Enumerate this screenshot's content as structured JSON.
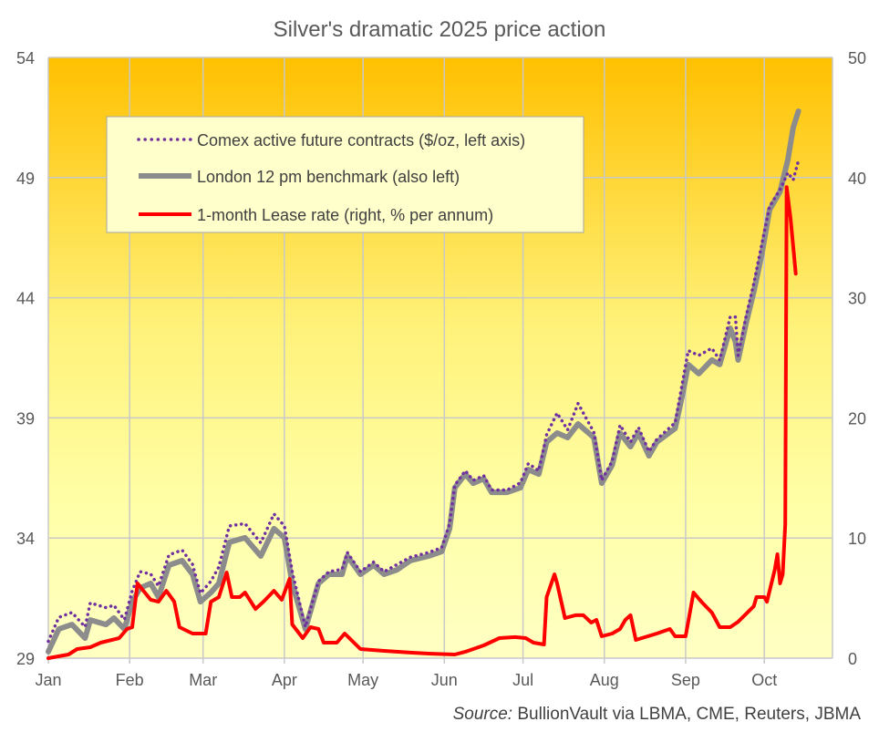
{
  "chart_data": {
    "type": "line",
    "title": "Silver's dramatic 2025 price action",
    "source_label": "Source:",
    "source_text": " BullionVault via LBMA, CME, Reuters, JBMA",
    "x_unit": "day of year 2025 (0 = 1 Jan)",
    "x_range": [
      0,
      299
    ],
    "x_ticks": [
      {
        "label": "Jan",
        "day": 0
      },
      {
        "label": "Feb",
        "day": 31
      },
      {
        "label": "Mar",
        "day": 59
      },
      {
        "label": "Apr",
        "day": 90
      },
      {
        "label": "May",
        "day": 120
      },
      {
        "label": "Jun",
        "day": 151
      },
      {
        "label": "Jul",
        "day": 181
      },
      {
        "label": "Aug",
        "day": 212
      },
      {
        "label": "Sep",
        "day": 243
      },
      {
        "label": "Oct",
        "day": 273
      }
    ],
    "y_left": {
      "range": [
        29,
        54
      ],
      "ticks": [
        "29",
        "34",
        "39",
        "44",
        "49",
        "54"
      ]
    },
    "y_right": {
      "range": [
        0,
        50
      ],
      "ticks": [
        "0",
        "10",
        "20",
        "30",
        "40",
        "50"
      ]
    },
    "grid": true,
    "legend_position": "top-left",
    "series": [
      {
        "name": "Comex active future contracts ($/oz, left axis)",
        "axis": "left",
        "style": "dotted",
        "color": "#7030A0",
        "points": [
          [
            0,
            29.7
          ],
          [
            4,
            30.7
          ],
          [
            9,
            30.9
          ],
          [
            14,
            30.3
          ],
          [
            16,
            31.3
          ],
          [
            22,
            31.1
          ],
          [
            25,
            31.2
          ],
          [
            29,
            30.6
          ],
          [
            32,
            31.8
          ],
          [
            35,
            32.6
          ],
          [
            39,
            32.5
          ],
          [
            42,
            32.0
          ],
          [
            46,
            33.3
          ],
          [
            51,
            33.5
          ],
          [
            55,
            32.9
          ],
          [
            58,
            31.7
          ],
          [
            62,
            32.2
          ],
          [
            65,
            32.8
          ],
          [
            69,
            34.5
          ],
          [
            75,
            34.6
          ],
          [
            81,
            33.8
          ],
          [
            86,
            35.0
          ],
          [
            90,
            34.5
          ],
          [
            93,
            32.6
          ],
          [
            98,
            30.3
          ],
          [
            103,
            32.2
          ],
          [
            107,
            32.6
          ],
          [
            112,
            32.7
          ],
          [
            114,
            33.4
          ],
          [
            119,
            32.6
          ],
          [
            124,
            33.0
          ],
          [
            128,
            32.6
          ],
          [
            133,
            32.9
          ],
          [
            138,
            33.2
          ],
          [
            145,
            33.4
          ],
          [
            150,
            33.6
          ],
          [
            153,
            34.6
          ],
          [
            155,
            36.2
          ],
          [
            159,
            36.8
          ],
          [
            162,
            36.4
          ],
          [
            166,
            36.6
          ],
          [
            169,
            36.0
          ],
          [
            175,
            36.0
          ],
          [
            180,
            36.3
          ],
          [
            183,
            37.1
          ],
          [
            187,
            36.8
          ],
          [
            190,
            38.3
          ],
          [
            194,
            39.2
          ],
          [
            198,
            38.5
          ],
          [
            202,
            39.6
          ],
          [
            208,
            38.4
          ],
          [
            211,
            36.4
          ],
          [
            215,
            37.2
          ],
          [
            218,
            38.7
          ],
          [
            222,
            38.0
          ],
          [
            225,
            38.6
          ],
          [
            229,
            37.6
          ],
          [
            232,
            38.1
          ],
          [
            239,
            38.8
          ],
          [
            242,
            40.6
          ],
          [
            244,
            41.8
          ],
          [
            248,
            41.6
          ],
          [
            253,
            41.9
          ],
          [
            256,
            41.4
          ],
          [
            260,
            43.2
          ],
          [
            262,
            43.2
          ],
          [
            263,
            41.6
          ],
          [
            266,
            43.2
          ],
          [
            269,
            44.6
          ],
          [
            272,
            46.2
          ],
          [
            275,
            47.8
          ],
          [
            279,
            48.5
          ],
          [
            282,
            49.2
          ],
          [
            284,
            48.9
          ],
          [
            286,
            49.7
          ]
        ]
      },
      {
        "name": "London 12 pm benchmark (also left)",
        "axis": "left",
        "style": "solid-thick",
        "color": "#8C8C8C",
        "points": [
          [
            0,
            29.27
          ],
          [
            4,
            30.21
          ],
          [
            9,
            30.4
          ],
          [
            14,
            29.83
          ],
          [
            16,
            30.59
          ],
          [
            22,
            30.4
          ],
          [
            25,
            30.67
          ],
          [
            29,
            30.21
          ],
          [
            32,
            31.35
          ],
          [
            35,
            31.92
          ],
          [
            39,
            32.11
          ],
          [
            42,
            31.54
          ],
          [
            46,
            32.87
          ],
          [
            51,
            33.06
          ],
          [
            55,
            32.49
          ],
          [
            58,
            31.35
          ],
          [
            62,
            31.73
          ],
          [
            65,
            32.11
          ],
          [
            69,
            33.82
          ],
          [
            75,
            34.01
          ],
          [
            81,
            33.25
          ],
          [
            86,
            34.39
          ],
          [
            90,
            34.01
          ],
          [
            93,
            32.11
          ],
          [
            98,
            30.21
          ],
          [
            103,
            32.11
          ],
          [
            107,
            32.49
          ],
          [
            112,
            32.49
          ],
          [
            114,
            33.25
          ],
          [
            119,
            32.49
          ],
          [
            124,
            32.87
          ],
          [
            128,
            32.49
          ],
          [
            133,
            32.68
          ],
          [
            138,
            33.06
          ],
          [
            145,
            33.25
          ],
          [
            150,
            33.44
          ],
          [
            153,
            34.39
          ],
          [
            155,
            36.09
          ],
          [
            159,
            36.66
          ],
          [
            162,
            36.28
          ],
          [
            166,
            36.47
          ],
          [
            169,
            35.9
          ],
          [
            175,
            35.9
          ],
          [
            180,
            36.09
          ],
          [
            183,
            36.85
          ],
          [
            187,
            36.66
          ],
          [
            190,
            37.99
          ],
          [
            194,
            38.37
          ],
          [
            198,
            38.18
          ],
          [
            202,
            38.75
          ],
          [
            208,
            38.18
          ],
          [
            211,
            36.28
          ],
          [
            215,
            37.04
          ],
          [
            218,
            38.37
          ],
          [
            222,
            37.8
          ],
          [
            225,
            38.37
          ],
          [
            229,
            37.42
          ],
          [
            232,
            37.99
          ],
          [
            239,
            38.56
          ],
          [
            242,
            40.08
          ],
          [
            244,
            41.22
          ],
          [
            248,
            40.84
          ],
          [
            253,
            41.41
          ],
          [
            256,
            41.22
          ],
          [
            260,
            42.73
          ],
          [
            262,
            42.16
          ],
          [
            263,
            41.41
          ],
          [
            266,
            42.92
          ],
          [
            269,
            44.25
          ],
          [
            272,
            45.77
          ],
          [
            275,
            47.66
          ],
          [
            279,
            48.42
          ],
          [
            282,
            49.75
          ],
          [
            284,
            51.08
          ],
          [
            286,
            51.76
          ]
        ]
      },
      {
        "name": "1-month Lease rate (right, % per annum)",
        "axis": "right",
        "style": "solid",
        "color": "#FF0000",
        "points": [
          [
            0,
            0
          ],
          [
            7.7,
            0.3
          ],
          [
            11,
            0.76
          ],
          [
            16,
            0.91
          ],
          [
            20,
            1.29
          ],
          [
            27,
            1.67
          ],
          [
            30,
            2.43
          ],
          [
            32,
            2.58
          ],
          [
            34,
            6.22
          ],
          [
            39,
            4.86
          ],
          [
            42,
            4.7
          ],
          [
            45,
            5.61
          ],
          [
            48,
            4.7
          ],
          [
            50,
            2.58
          ],
          [
            55,
            2.05
          ],
          [
            60,
            2.05
          ],
          [
            62,
            4.7
          ],
          [
            65,
            5.08
          ],
          [
            68,
            7.13
          ],
          [
            70,
            5.08
          ],
          [
            73,
            5.08
          ],
          [
            75,
            5.46
          ],
          [
            79,
            4.1
          ],
          [
            82,
            4.7
          ],
          [
            86,
            5.61
          ],
          [
            89,
            4.86
          ],
          [
            92,
            6.6
          ],
          [
            93,
            2.81
          ],
          [
            97,
            1.67
          ],
          [
            100,
            2.58
          ],
          [
            103,
            2.43
          ],
          [
            105,
            1.29
          ],
          [
            110,
            1.29
          ],
          [
            113,
            2.05
          ],
          [
            119,
            0.76
          ],
          [
            128,
            0.61
          ],
          [
            138,
            0.46
          ],
          [
            145,
            0.38
          ],
          [
            155,
            0.3
          ],
          [
            159,
            0.53
          ],
          [
            162,
            0.76
          ],
          [
            166,
            1.06
          ],
          [
            172,
            1.67
          ],
          [
            178,
            1.75
          ],
          [
            182,
            1.67
          ],
          [
            185,
            1.29
          ],
          [
            189,
            1.14
          ],
          [
            190,
            5.08
          ],
          [
            193,
            6.98
          ],
          [
            194,
            6.22
          ],
          [
            197,
            3.34
          ],
          [
            201,
            3.57
          ],
          [
            204,
            3.57
          ],
          [
            207,
            2.96
          ],
          [
            209,
            3.19
          ],
          [
            211,
            1.82
          ],
          [
            215,
            2.05
          ],
          [
            218,
            2.43
          ],
          [
            220,
            3.19
          ],
          [
            222,
            3.57
          ],
          [
            224,
            1.52
          ],
          [
            232,
            2.05
          ],
          [
            237,
            2.43
          ],
          [
            239,
            1.82
          ],
          [
            243,
            1.82
          ],
          [
            246,
            5.46
          ],
          [
            249,
            4.7
          ],
          [
            253,
            3.79
          ],
          [
            256,
            2.58
          ],
          [
            260,
            2.58
          ],
          [
            263,
            3.03
          ],
          [
            269,
            4.32
          ],
          [
            270,
            5.08
          ],
          [
            273,
            5.08
          ],
          [
            274,
            4.7
          ],
          [
            277,
            7.36
          ],
          [
            278,
            8.65
          ],
          [
            279,
            6.22
          ],
          [
            280,
            6.98
          ],
          [
            281,
            11.15
          ],
          [
            281.5,
            39.2
          ],
          [
            283,
            36.6
          ],
          [
            285,
            32.0
          ]
        ]
      }
    ]
  }
}
